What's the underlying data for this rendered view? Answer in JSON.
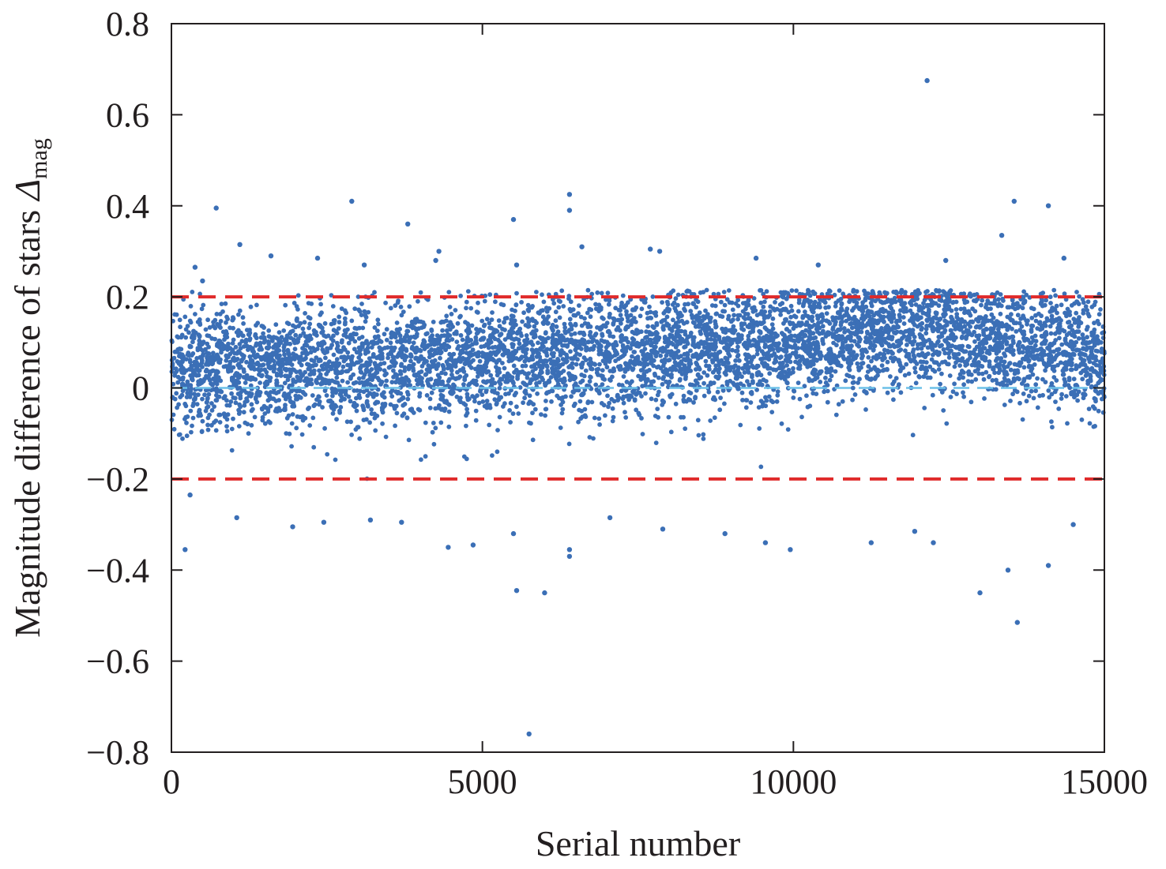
{
  "chart_data": {
    "type": "scatter",
    "title": "",
    "xlabel": "Serial number",
    "ylabel": "Magnitude difference of stars",
    "ylabel_symbol": "Δ",
    "ylabel_subscript": "mag",
    "xlim": [
      0,
      15000
    ],
    "ylim": [
      -0.8,
      0.8
    ],
    "x_ticks": [
      0,
      5000,
      10000,
      15000
    ],
    "x_tick_labels": [
      "0",
      "5000",
      "10000",
      "15000"
    ],
    "y_ticks": [
      0.8,
      0.6,
      0.4,
      0.2,
      0,
      -0.2,
      -0.4,
      -0.6,
      -0.8
    ],
    "y_tick_labels": [
      "0.8",
      "0.6",
      "0.4",
      "0.2",
      "0",
      "−0.2",
      "−0.4",
      "−0.6",
      "−0.8"
    ],
    "grid": false,
    "legend": "none",
    "point_color": "#3b6fb6",
    "reference_lines": [
      {
        "y": 0.2,
        "color": "#e02a2a",
        "style": "dashed"
      },
      {
        "y": -0.2,
        "color": "#e02a2a",
        "style": "dashed"
      },
      {
        "y": 0.0,
        "color": "#6cc0e8",
        "style": "dashed"
      }
    ],
    "series": [
      {
        "total_points": 15000,
        "mean_trend": [
          {
            "x": 0,
            "y": 0.04
          },
          {
            "x": 2500,
            "y": 0.05
          },
          {
            "x": 5000,
            "y": 0.06
          },
          {
            "x": 7500,
            "y": 0.08
          },
          {
            "x": 10000,
            "y": 0.1
          },
          {
            "x": 12000,
            "y": 0.13
          },
          {
            "x": 13500,
            "y": 0.1
          },
          {
            "x": 15000,
            "y": 0.06
          }
        ],
        "points": [
          {
            "x": 380,
            "y": 0.265
          },
          {
            "x": 500,
            "y": 0.235
          },
          {
            "x": 720,
            "y": 0.395
          },
          {
            "x": 1100,
            "y": 0.315
          },
          {
            "x": 1600,
            "y": 0.29
          },
          {
            "x": 2350,
            "y": 0.285
          },
          {
            "x": 2900,
            "y": 0.41
          },
          {
            "x": 3100,
            "y": 0.27
          },
          {
            "x": 3800,
            "y": 0.36
          },
          {
            "x": 4300,
            "y": 0.3
          },
          {
            "x": 4250,
            "y": 0.28
          },
          {
            "x": 5500,
            "y": 0.37
          },
          {
            "x": 5550,
            "y": 0.27
          },
          {
            "x": 6400,
            "y": 0.425
          },
          {
            "x": 6400,
            "y": 0.39
          },
          {
            "x": 6600,
            "y": 0.31
          },
          {
            "x": 7700,
            "y": 0.305
          },
          {
            "x": 7850,
            "y": 0.3
          },
          {
            "x": 9400,
            "y": 0.285
          },
          {
            "x": 10400,
            "y": 0.27
          },
          {
            "x": 12150,
            "y": 0.675
          },
          {
            "x": 12450,
            "y": 0.28
          },
          {
            "x": 13350,
            "y": 0.335
          },
          {
            "x": 13550,
            "y": 0.41
          },
          {
            "x": 14100,
            "y": 0.4
          },
          {
            "x": 14350,
            "y": 0.285
          },
          {
            "x": 220,
            "y": -0.355
          },
          {
            "x": 300,
            "y": -0.235
          },
          {
            "x": 1050,
            "y": -0.285
          },
          {
            "x": 1950,
            "y": -0.305
          },
          {
            "x": 2450,
            "y": -0.295
          },
          {
            "x": 3200,
            "y": -0.29
          },
          {
            "x": 3700,
            "y": -0.295
          },
          {
            "x": 4450,
            "y": -0.35
          },
          {
            "x": 4850,
            "y": -0.345
          },
          {
            "x": 5500,
            "y": -0.32
          },
          {
            "x": 5550,
            "y": -0.445
          },
          {
            "x": 5750,
            "y": -0.76
          },
          {
            "x": 6000,
            "y": -0.45
          },
          {
            "x": 6400,
            "y": -0.355
          },
          {
            "x": 6400,
            "y": -0.37
          },
          {
            "x": 7050,
            "y": -0.285
          },
          {
            "x": 7900,
            "y": -0.31
          },
          {
            "x": 8900,
            "y": -0.32
          },
          {
            "x": 9550,
            "y": -0.34
          },
          {
            "x": 9950,
            "y": -0.355
          },
          {
            "x": 11250,
            "y": -0.34
          },
          {
            "x": 11950,
            "y": -0.315
          },
          {
            "x": 12250,
            "y": -0.34
          },
          {
            "x": 13000,
            "y": -0.45
          },
          {
            "x": 13450,
            "y": -0.4
          },
          {
            "x": 13600,
            "y": -0.515
          },
          {
            "x": 14100,
            "y": -0.39
          },
          {
            "x": 14500,
            "y": -0.3
          }
        ]
      }
    ]
  }
}
